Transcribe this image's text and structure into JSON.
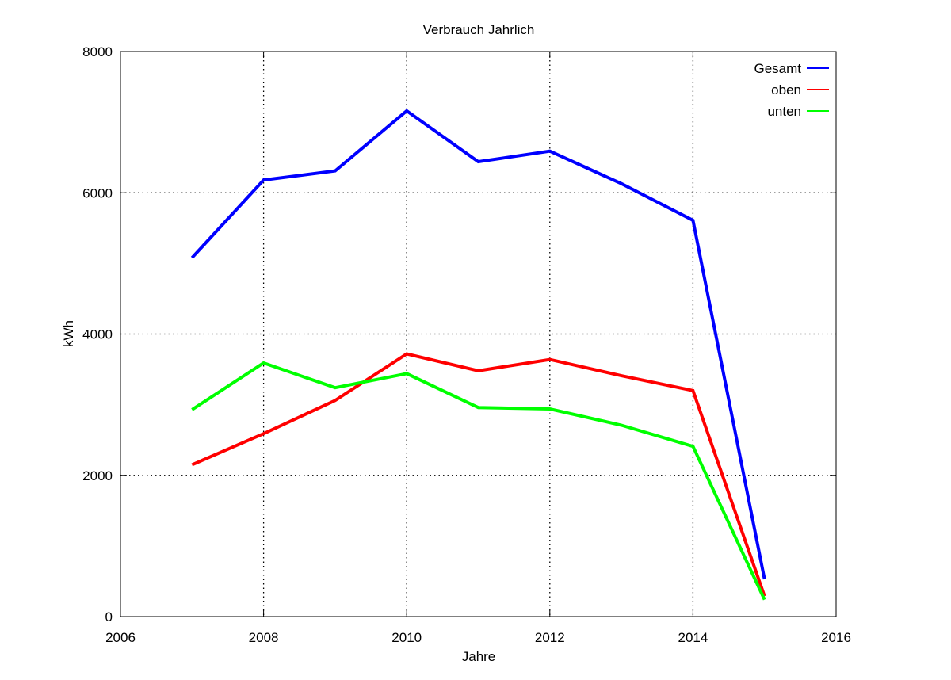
{
  "chart_data": {
    "type": "line",
    "title": "Verbrauch Jahrlich",
    "xlabel": "Jahre",
    "ylabel": "kWh",
    "xlim": [
      2006,
      2016
    ],
    "ylim": [
      0,
      8000
    ],
    "xticks": [
      2006,
      2008,
      2010,
      2012,
      2014,
      2016
    ],
    "yticks": [
      0,
      2000,
      4000,
      6000,
      8000
    ],
    "grid": true,
    "legend_position": "top-right",
    "x": [
      2007,
      2008,
      2009,
      2010,
      2011,
      2012,
      2013,
      2014,
      2015
    ],
    "series": [
      {
        "name": "Gesamt",
        "color": "#0000ff",
        "values": [
          5080,
          6180,
          6310,
          7160,
          6440,
          6590,
          6130,
          5610,
          530
        ]
      },
      {
        "name": "oben",
        "color": "#ff0000",
        "values": [
          2150,
          2590,
          3060,
          3720,
          3480,
          3640,
          3410,
          3200,
          290
        ]
      },
      {
        "name": "unten",
        "color": "#00ff00",
        "values": [
          2930,
          3590,
          3240,
          3440,
          2960,
          2940,
          2710,
          2410,
          240
        ]
      }
    ]
  }
}
